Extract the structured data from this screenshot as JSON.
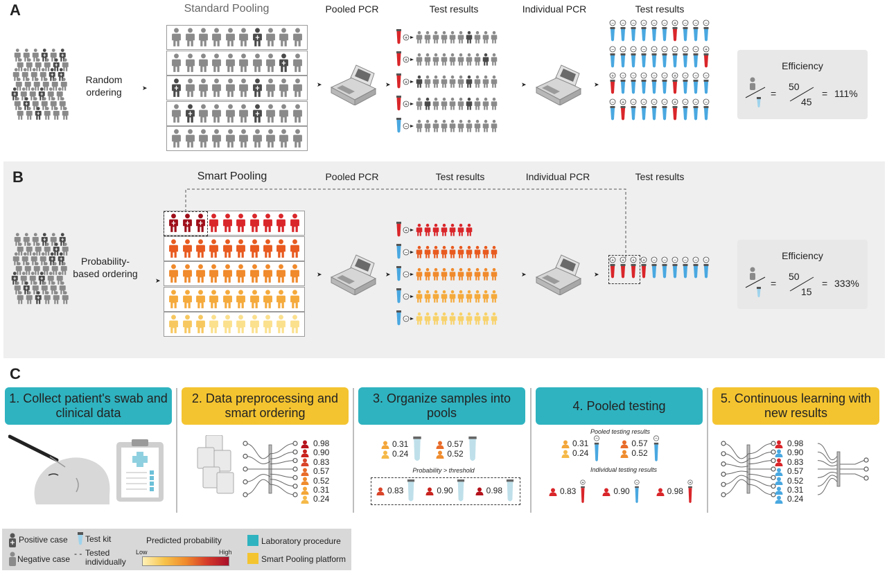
{
  "panelA": {
    "letter": "A",
    "ordering_label": "Random ordering",
    "headers": [
      "Standard Pooling",
      "Pooled PCR",
      "Test results",
      "Individual PCR",
      "Test results"
    ],
    "efficiency": {
      "title": "Efficiency",
      "equals": "=",
      "numerator": "50",
      "denominator": "45",
      "result": "111%"
    }
  },
  "panelB": {
    "letter": "B",
    "ordering_label": "Probability-based ordering",
    "headers": [
      "Smart Pooling",
      "Pooled PCR",
      "Test results",
      "Individual PCR",
      "Test results"
    ],
    "efficiency": {
      "title": "Efficiency",
      "equals": "=",
      "numerator": "50",
      "denominator": "15",
      "result": "333%"
    }
  },
  "panelC": {
    "letter": "C",
    "steps": [
      {
        "label": "1. Collect patient's swab and clinical data",
        "color": "teal"
      },
      {
        "label": "2. Data preprocessing and smart ordering",
        "color": "yellow"
      },
      {
        "label": "3. Organize samples into pools",
        "color": "teal"
      },
      {
        "label": "4. Pooled testing",
        "color": "teal"
      },
      {
        "label": "5. Continuous learning with new results",
        "color": "yellow"
      }
    ],
    "probabilities": [
      "0.98",
      "0.90",
      "0.83",
      "0.57",
      "0.52",
      "0.31",
      "0.24"
    ],
    "step3": {
      "pool1": [
        "0.31",
        "0.24"
      ],
      "pool2": [
        "0.57",
        "0.52"
      ],
      "threshold_note": "Probability > threshold",
      "individual": [
        "0.83",
        "0.90",
        "0.98"
      ]
    },
    "step4": {
      "pooled_title": "Pooled testing results",
      "pool1": [
        "0.31",
        "0.24"
      ],
      "pool2": [
        "0.57",
        "0.52"
      ],
      "individual_title": "Individual testing results",
      "individual": [
        "0.83",
        "0.90",
        "0.98"
      ]
    }
  },
  "legend": {
    "positive": "Positive case",
    "negative": "Negative case",
    "test_kit": "Test kit",
    "tested_individually": "Tested individually",
    "tested_dash": "- -",
    "predicted_probability": "Predicted probability",
    "low": "Low",
    "high": "High",
    "lab": "Laboratory procedure",
    "platform": "Smart Pooling platform"
  },
  "colors": {
    "teal": "#2fb3c0",
    "yellow": "#f4c430",
    "positive_red": "#c8102e",
    "negative_blue": "#4aa8e0",
    "gray_person": "#8a8a8a",
    "dark_person": "#555555"
  }
}
